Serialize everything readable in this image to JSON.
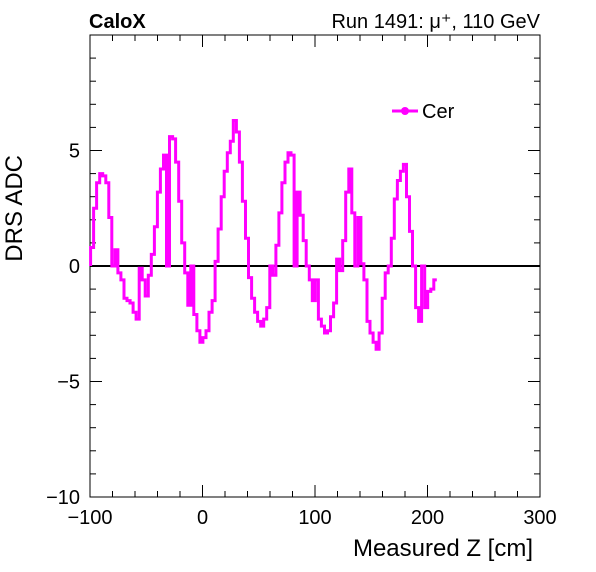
{
  "header": {
    "experiment": "CaloX",
    "run_info": "Run 1491:   μ⁺, 110 GeV"
  },
  "chart_data": {
    "type": "line",
    "step": true,
    "xlabel": "Measured Z [cm]",
    "ylabel": "DRS ADC",
    "xlim": [
      -100,
      300
    ],
    "ylim": [
      -10,
      10
    ],
    "xticks": [
      -100,
      0,
      100,
      200,
      300
    ],
    "xtick_labels": [
      "−100",
      "0",
      "100",
      "200",
      "300"
    ],
    "yticks": [
      -10,
      -5,
      0,
      5
    ],
    "ytick_labels": [
      "−10",
      "−5",
      "0",
      "5"
    ],
    "baseline": 0,
    "legend": {
      "position": "top-right",
      "entries": [
        "Cer"
      ]
    },
    "series": [
      {
        "name": "Cer",
        "color": "#ff00ff",
        "bin_width": 2.7,
        "x_start": -99.5,
        "values": [
          0.8,
          2.5,
          3.6,
          4.0,
          3.9,
          3.6,
          2.1,
          0.0,
          0.7,
          -0.3,
          -0.6,
          -1.4,
          -1.5,
          -1.6,
          -2.0,
          -2.3,
          -0.1,
          -0.6,
          -1.3,
          -0.4,
          0.5,
          1.7,
          3.2,
          4.2,
          4.8,
          0.0,
          5.6,
          5.5,
          4.5,
          2.8,
          1.0,
          -0.3,
          -1.7,
          0.0,
          -2.1,
          -2.8,
          -3.3,
          -3.1,
          -2.8,
          -2.0,
          -1.5,
          0.2,
          1.6,
          3.0,
          4.1,
          4.9,
          5.4,
          6.3,
          5.8,
          4.5,
          2.8,
          1.2,
          -0.5,
          -1.4,
          -2.0,
          -2.4,
          -2.6,
          -2.3,
          -1.8,
          0.0,
          -0.4,
          0.9,
          2.3,
          3.6,
          4.5,
          4.9,
          4.8,
          0.0,
          3.2,
          2.2,
          1.1,
          0.0,
          -0.6,
          -1.5,
          -0.6,
          -2.3,
          -2.6,
          -2.9,
          -2.8,
          -2.2,
          -1.6,
          0.3,
          -0.2,
          1.1,
          3.2,
          4.2,
          2.3,
          0.0,
          2.1,
          0.1,
          -0.6,
          -2.4,
          -2.9,
          -3.3,
          -3.6,
          -2.9,
          -1.4,
          -0.3,
          0.0,
          1.2,
          2.9,
          3.7,
          4.1,
          4.4,
          3.0,
          1.5,
          0.0,
          -1.8,
          -2.4,
          0.0,
          -1.8,
          -1.1,
          -1.0,
          -0.6
        ]
      }
    ]
  }
}
